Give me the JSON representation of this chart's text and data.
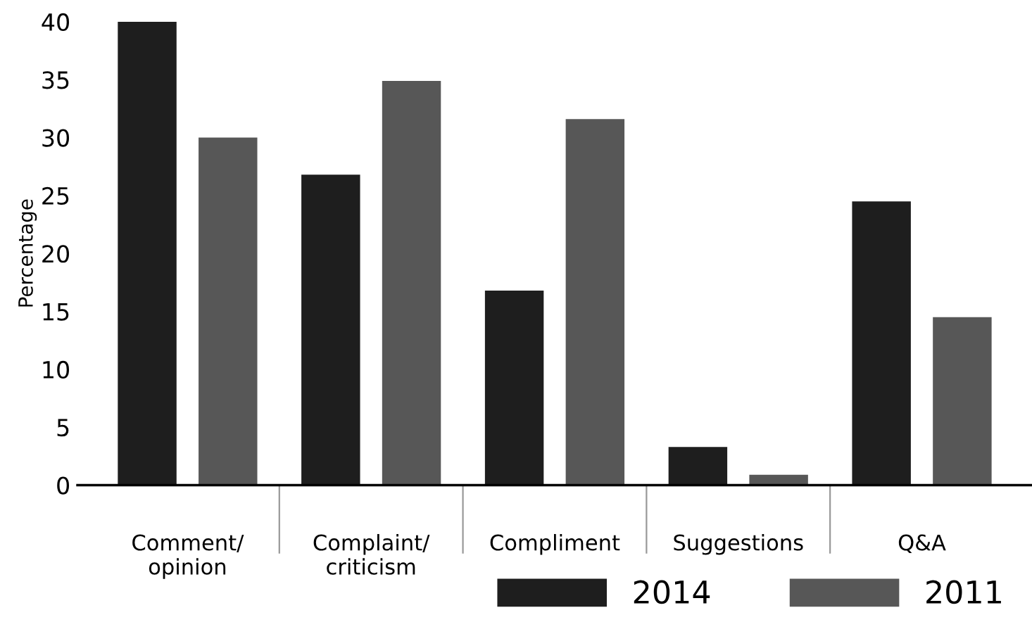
{
  "chart_data": {
    "type": "bar",
    "ylabel": "Percentage",
    "categories": [
      "Comment/\nopinion",
      "Complaint/\ncriticism",
      "Compliment",
      "Suggestions",
      "Q&A"
    ],
    "series": [
      {
        "name": "2014",
        "color": "#1e1e1e",
        "values": [
          40,
          26.8,
          16.8,
          3.3,
          24.5
        ]
      },
      {
        "name": "2011",
        "color": "#575757",
        "values": [
          30,
          34.9,
          31.6,
          0.9,
          14.5
        ]
      }
    ],
    "ylim": [
      0,
      40
    ],
    "yticks": [
      0,
      5,
      10,
      15,
      20,
      25,
      30,
      35,
      40
    ],
    "grid": false,
    "legend": "bottom right"
  }
}
